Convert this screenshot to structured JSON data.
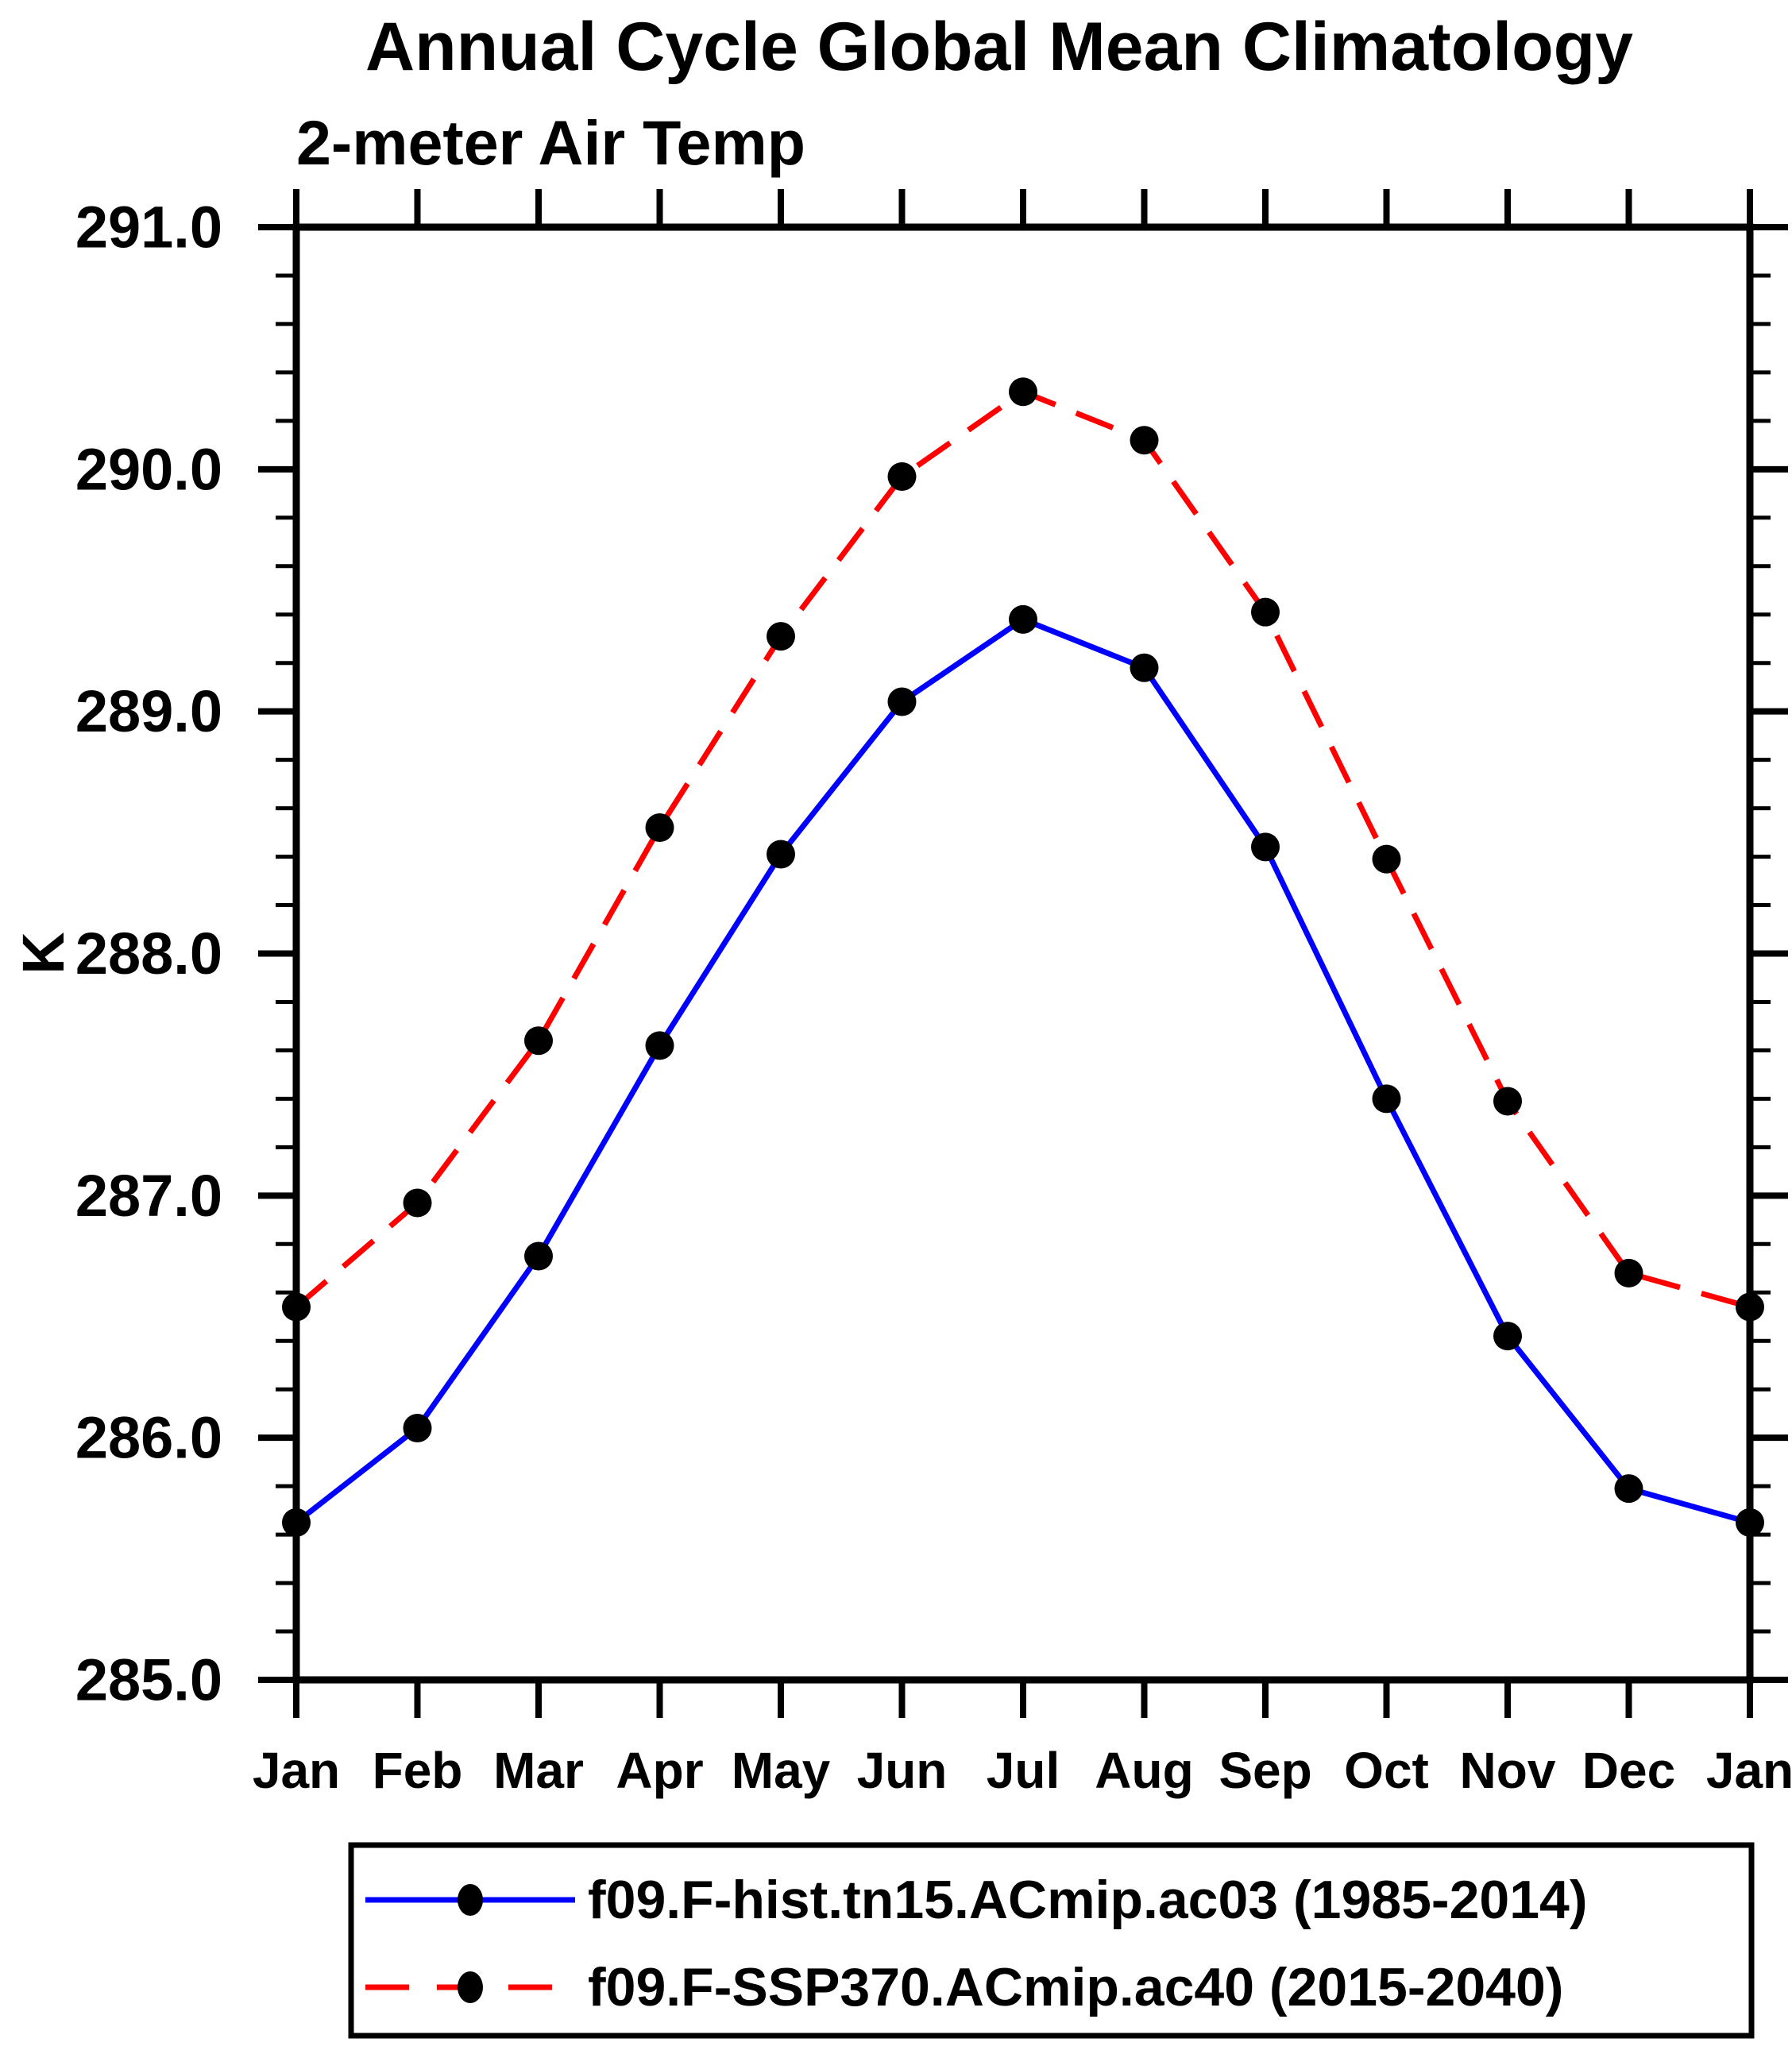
{
  "page": {
    "background": "#ffffff"
  },
  "chart_data": {
    "type": "line",
    "title": "Annual Cycle Global Mean Climatology",
    "subtitle": "2-meter Air Temp",
    "ylabel": "K",
    "xlabel": "",
    "categories": [
      "Jan",
      "Feb",
      "Mar",
      "Apr",
      "May",
      "Jun",
      "Jul",
      "Aug",
      "Sep",
      "Oct",
      "Nov",
      "Dec",
      "Jan"
    ],
    "ylim": [
      285.0,
      291.0
    ],
    "ytick_step": 1.0,
    "yminor_step": 0.2,
    "ytick_label_format": "one-decimal",
    "grid": false,
    "legend_position": "bottom",
    "axis_color": "#000000",
    "marker_color": "#000000",
    "series": [
      {
        "name": "f09.F-hist.tn15.ACmip.ac03 (1985-2014)",
        "color": "#0000ff",
        "line_style": "solid",
        "marker": "filled-circle",
        "values": [
          285.65,
          286.04,
          286.75,
          287.62,
          288.41,
          289.04,
          289.38,
          289.18,
          288.44,
          287.4,
          286.42,
          285.79,
          285.65
        ]
      },
      {
        "name": "f09.F-SSP370.ACmip.ac40 (2015-2040)",
        "color": "#ff0000",
        "line_style": "dashed",
        "marker": "filled-circle",
        "values": [
          286.54,
          286.97,
          287.64,
          288.52,
          289.31,
          289.97,
          290.32,
          290.12,
          289.41,
          288.39,
          287.39,
          286.68,
          286.54
        ]
      }
    ]
  }
}
